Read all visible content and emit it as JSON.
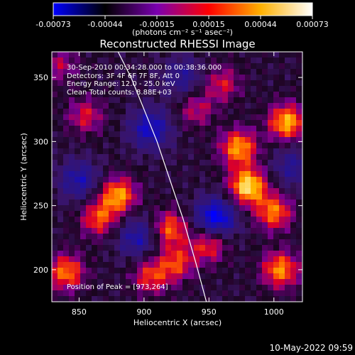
{
  "colorbar": {
    "ticks": [
      "-0.00073",
      "-0.00044",
      "-0.00015",
      "0.00015",
      "0.00044",
      "0.00073"
    ],
    "unit_label": "(photons cm⁻² s⁻¹ asec⁻²)",
    "range": [
      -0.00073,
      0.00073
    ],
    "stops": [
      "#0000ff",
      "#000000",
      "#7a00b0",
      "#ff0000",
      "#ffb000",
      "#ffffff"
    ]
  },
  "annotations": {
    "time_range": "30-Sep-2010 00:34:28.000 to 00:38:36.000",
    "detectors": "Detectors: 3F 4F 6F 7F 8F, Att 0",
    "energy": "Energy Range: 12.0 - 25.0 keV",
    "clean": "Clean     Total counts: 8.88E+03",
    "peak": "Position of Peak = [973,264]"
  },
  "footer": {
    "timestamp": "10-May-2022 09:59"
  },
  "chart_data": {
    "type": "heatmap",
    "title": "Reconstructed RHESSI Image",
    "xlabel": "Heliocentric X (arcsec)",
    "ylabel": "Heliocentric Y (arcsec)",
    "xlim": [
      829,
      1022
    ],
    "ylim": [
      175,
      370
    ],
    "xticks": [
      850,
      900,
      950,
      1000
    ],
    "yticks": [
      200,
      250,
      300,
      350
    ],
    "limb_curve": {
      "x": [
        880,
        890,
        900,
        910,
        920,
        930,
        940,
        948
      ],
      "y": [
        370,
        350,
        325,
        300,
        270,
        240,
        205,
        175
      ]
    },
    "hotspots": [
      {
        "x": 980,
        "y": 265,
        "level": 1.0
      },
      {
        "x": 973,
        "y": 295,
        "level": 0.8
      },
      {
        "x": 1010,
        "y": 315,
        "level": 0.85
      },
      {
        "x": 880,
        "y": 258,
        "level": 0.8
      },
      {
        "x": 865,
        "y": 240,
        "level": 0.6
      },
      {
        "x": 920,
        "y": 232,
        "level": 0.65
      },
      {
        "x": 925,
        "y": 205,
        "level": 0.55
      },
      {
        "x": 1000,
        "y": 245,
        "level": 0.7
      },
      {
        "x": 1005,
        "y": 200,
        "level": 0.75
      },
      {
        "x": 950,
        "y": 220,
        "level": 0.6
      },
      {
        "x": 840,
        "y": 198,
        "level": 0.7
      },
      {
        "x": 905,
        "y": 195,
        "level": 0.55
      },
      {
        "x": 960,
        "y": 345,
        "level": 0.45
      },
      {
        "x": 855,
        "y": 320,
        "level": 0.45
      },
      {
        "x": 940,
        "y": 325,
        "level": 0.4
      },
      {
        "x": 835,
        "y": 360,
        "level": 0.35
      }
    ],
    "coldspots": [
      {
        "x": 955,
        "y": 240,
        "level": 0.8
      },
      {
        "x": 905,
        "y": 310,
        "level": 0.6
      },
      {
        "x": 850,
        "y": 270,
        "level": 0.5
      },
      {
        "x": 895,
        "y": 225,
        "level": 0.5
      },
      {
        "x": 1015,
        "y": 280,
        "level": 0.4
      },
      {
        "x": 930,
        "y": 350,
        "level": 0.4
      }
    ]
  }
}
